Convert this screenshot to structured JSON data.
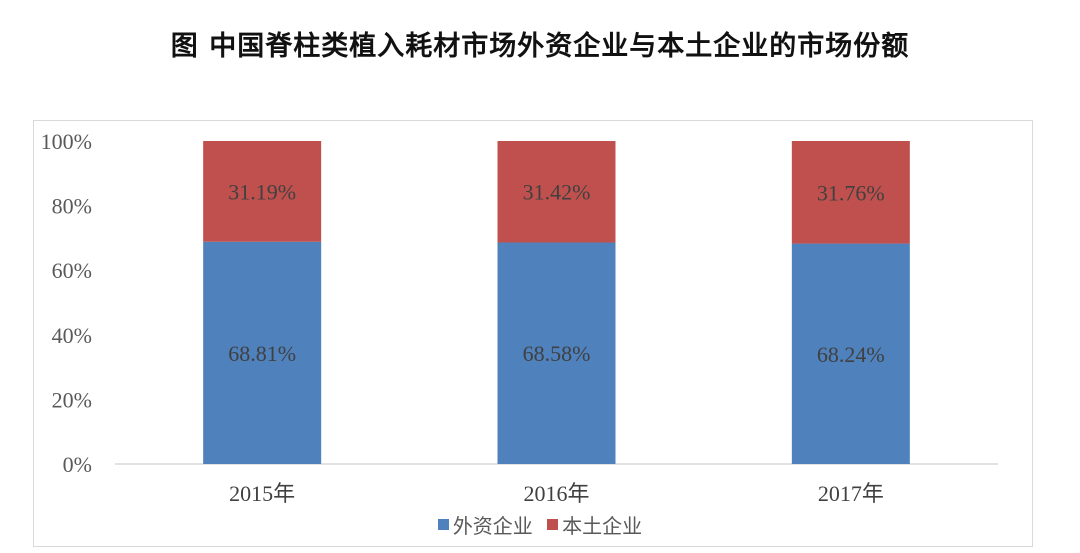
{
  "title": "图  中国脊柱类植入耗材市场外资企业与本土企业的市场份额",
  "chart_data": {
    "type": "bar",
    "stacked": true,
    "categories": [
      "2015年",
      "2016年",
      "2017年"
    ],
    "series": [
      {
        "name": "外资企业",
        "values": [
          68.81,
          68.58,
          68.24
        ],
        "labels": [
          "68.81%",
          "68.58%",
          "68.24%"
        ],
        "color": "#4f81bd"
      },
      {
        "name": "本土企业",
        "values": [
          31.19,
          31.42,
          31.76
        ],
        "labels": [
          "31.19%",
          "31.42%",
          "31.76%"
        ],
        "color": "#c0504d"
      }
    ],
    "yticks": [
      "0%",
      "20%",
      "40%",
      "60%",
      "80%",
      "100%"
    ],
    "ylim": [
      0,
      100
    ],
    "grid": false,
    "legend_position": "bottom"
  }
}
